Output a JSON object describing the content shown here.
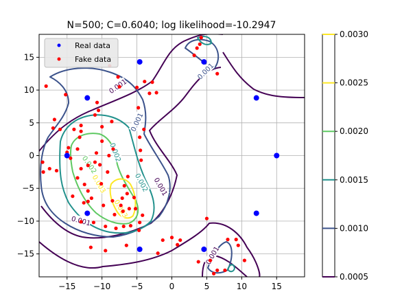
{
  "chart_data": {
    "type": "scatter",
    "title": "N=500; C=0.6040; log likelihood=-10.2947",
    "xlabel": "",
    "ylabel": "",
    "xlim": [
      -19,
      19
    ],
    "ylim": [
      -18.5,
      18.5
    ],
    "xticks": [
      -15,
      -10,
      -5,
      0,
      5,
      10,
      15
    ],
    "yticks": [
      -15,
      -10,
      -5,
      0,
      5,
      10,
      15
    ],
    "grid": true,
    "legend_position": "top-left",
    "series": [
      {
        "name": "Real data",
        "color": "#0000ff",
        "points": [
          [
            -15,
            0
          ],
          [
            -12.1,
            8.8
          ],
          [
            -12.1,
            -8.8
          ],
          [
            -4.6,
            14.3
          ],
          [
            -4.6,
            -14.3
          ],
          [
            4.6,
            14.3
          ],
          [
            4.6,
            -14.3
          ],
          [
            12.1,
            8.8
          ],
          [
            12.1,
            -8.8
          ],
          [
            15,
            0
          ]
        ]
      },
      {
        "name": "Fake data",
        "color": "#ff0000",
        "points": [
          [
            -18,
            10.6
          ],
          [
            -18.5,
            -1
          ],
          [
            -17.5,
            -2
          ],
          [
            -18.4,
            -2.5
          ],
          [
            -17,
            4.2
          ],
          [
            -16.8,
            5.5
          ],
          [
            -15.2,
            9.3
          ],
          [
            -16,
            4
          ],
          [
            -15,
            0.5
          ],
          [
            -14.8,
            1.2
          ],
          [
            -14.5,
            -0.4
          ],
          [
            -14,
            4
          ],
          [
            -13.5,
            1
          ],
          [
            -13,
            4.6
          ],
          [
            -13,
            3.7
          ],
          [
            -13.2,
            2.8
          ],
          [
            -13,
            -2
          ],
          [
            -13.5,
            -3.4
          ],
          [
            -14.2,
            -6.2
          ],
          [
            -12.5,
            -4.4
          ],
          [
            -12,
            -1.5
          ],
          [
            -12,
            -5.4
          ],
          [
            -12,
            -7
          ],
          [
            -12.6,
            -7.2
          ],
          [
            -13,
            -10.1
          ],
          [
            -11.5,
            -6.5
          ],
          [
            -11.2,
            -10.2
          ],
          [
            -11,
            -1
          ],
          [
            -10.8,
            0.4
          ],
          [
            -11,
            6.2
          ],
          [
            -10.7,
            8.1
          ],
          [
            -10.5,
            6.9
          ],
          [
            -10,
            4.4
          ],
          [
            -10,
            2.2
          ],
          [
            -10.3,
            -1.4
          ],
          [
            -10.1,
            -4.3
          ],
          [
            -9.8,
            -7.6
          ],
          [
            -9.5,
            -10.8
          ],
          [
            -9.5,
            -14.5
          ],
          [
            -9.2,
            -2.5
          ],
          [
            -9,
            0
          ],
          [
            -8.6,
            5.2
          ],
          [
            -8.4,
            1
          ],
          [
            -8.5,
            -6.9
          ],
          [
            -8.2,
            -9
          ],
          [
            -8,
            -11.1
          ],
          [
            -7.7,
            12
          ],
          [
            -7.5,
            10.5
          ],
          [
            -7.3,
            -7.6
          ],
          [
            -7.1,
            -6.5
          ],
          [
            -6.9,
            -10.8
          ],
          [
            -7,
            -8.5
          ],
          [
            -6.8,
            -4.6
          ],
          [
            -6.5,
            -13.7
          ],
          [
            -6.3,
            -3.2
          ],
          [
            -6.4,
            -5.8
          ],
          [
            -6.1,
            -8.1
          ],
          [
            -5.9,
            -10.7
          ],
          [
            -5.4,
            -6.4
          ],
          [
            -5.2,
            -8.1
          ],
          [
            -5.0,
            10.4
          ],
          [
            -4.8,
            7.3
          ],
          [
            -4.6,
            2.8
          ],
          [
            -4.5,
            0.8
          ],
          [
            -4.4,
            -0.7
          ],
          [
            -4.2,
            -9.1
          ],
          [
            -4.6,
            -10.2
          ],
          [
            -4.7,
            -11.4
          ],
          [
            -3.2,
            9.5
          ],
          [
            -3.9,
            11.3
          ],
          [
            -2.8,
            11.2
          ],
          [
            -2.2,
            9.6
          ],
          [
            -2,
            -14.9
          ],
          [
            -1.3,
            -12.9
          ],
          [
            0,
            -12.5
          ],
          [
            0.8,
            -13.6
          ],
          [
            1.2,
            -12.9
          ],
          [
            3.8,
            -16.2
          ],
          [
            5,
            -9.6
          ],
          [
            4.2,
            18
          ],
          [
            3.6,
            16.4
          ],
          [
            3.2,
            15.3
          ],
          [
            4,
            17
          ],
          [
            6.5,
            12.5
          ],
          [
            6,
            -18
          ],
          [
            7.6,
            -17.5
          ],
          [
            8,
            -12.8
          ],
          [
            9.2,
            -12.8
          ],
          [
            9.5,
            -13.7
          ],
          [
            10.4,
            -16
          ],
          [
            6.5,
            -17.5
          ],
          [
            5.5,
            -16
          ],
          [
            -4.0,
            4.0
          ],
          [
            -16.5,
            -2.3
          ],
          [
            -11.6,
            -14.0
          ],
          [
            -8.9,
            13.7
          ]
        ]
      }
    ],
    "colorbar": {
      "min": 0.0005,
      "max": 0.003,
      "ticks": [
        "0.0005",
        "0.0010",
        "0.0015",
        "0.0020",
        "0.0025",
        "0.0030"
      ],
      "level_colors": [
        "#440154",
        "#3b528b",
        "#21918c",
        "#5ec962",
        "#fde725"
      ]
    },
    "contour_labels": [
      "0.001",
      "0.001",
      "0.001",
      "0.001",
      "0.001",
      "0.001",
      "0.002",
      "0.002",
      "0.002",
      "0.003",
      "0.003"
    ]
  }
}
